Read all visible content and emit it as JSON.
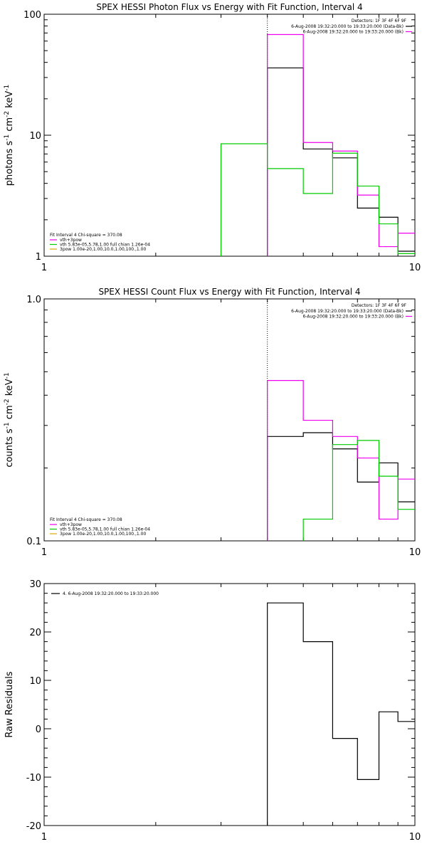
{
  "chart_data": [
    {
      "type": "line",
      "title": "SPEX HESSI Photon Flux vs Energy with Fit Function, Interval 4",
      "ylabel": "photons s^-1 cm^-2 keV^-1",
      "ylabel_parts": [
        "photons s",
        "-1",
        " cm",
        "-2",
        " keV",
        "-1"
      ],
      "xscale": "log",
      "yscale": "log",
      "xlim": [
        1,
        10
      ],
      "ylim": [
        1,
        100
      ],
      "xticks": [
        "1",
        "10"
      ],
      "yticks": [
        "1",
        "10",
        "100"
      ],
      "edges": [
        3.0,
        4.0,
        5.0,
        6.0,
        7.0,
        8.0,
        9.0,
        10.0
      ],
      "vline": 4.0,
      "series": [
        {
          "name": "data",
          "color": "#000000",
          "values": [
            null,
            36,
            7.7,
            6.5,
            2.5,
            2.1,
            1.1
          ]
        },
        {
          "name": "vth+3pow",
          "color": "#ee00ee",
          "values": [
            null,
            68,
            8.7,
            7.4,
            3.2,
            1.2,
            1.55
          ]
        },
        {
          "name": "vth 5.83e-05,5.78,1.00  full chian 1.26e-04",
          "color": "#00cc00",
          "values": [
            8.5,
            5.3,
            3.3,
            7.1,
            3.8,
            1.85,
            1.05
          ]
        }
      ],
      "legend_top_right": {
        "detectors": "Detectors: 1F 3F 4F 6F 9F",
        "lines": [
          {
            "text": "6-Aug-2008 19:32:20.000 to 19:33:20.000 (Data-Bk)",
            "color": "#000000"
          },
          {
            "text": "6-Aug-2008 19:32:20.000 to 19:33:20.000 (Bk)",
            "color": "#ee00ee"
          }
        ]
      },
      "legend_bottom_left": {
        "header": "Fit Interval 4    Chi-square = 370.08",
        "lines": [
          {
            "text": "vth+3pow",
            "color": "#ee00ee"
          },
          {
            "text": "vth 5.83e-05,5.78,1.00  full chian 1.26e-04",
            "color": "#00cc00"
          },
          {
            "text": "3pow 1.00e-20,1.00,10.0,1.00,100.,1.00",
            "color": "#ddaa00"
          }
        ]
      }
    },
    {
      "type": "line",
      "title": "SPEX HESSI Count Flux vs Energy with Fit Function, Interval 4",
      "ylabel": "counts s^-1 cm^-2 keV^-1",
      "ylabel_parts": [
        "counts s",
        "-1",
        " cm",
        "-2",
        " keV",
        "-1"
      ],
      "xscale": "log",
      "yscale": "log",
      "xlim": [
        1,
        10
      ],
      "ylim": [
        0.1,
        1.0
      ],
      "xticks": [
        "1",
        "10"
      ],
      "yticks": [
        "0.1",
        "1.0"
      ],
      "edges": [
        3.0,
        4.0,
        5.0,
        6.0,
        7.0,
        8.0,
        9.0,
        10.0
      ],
      "vline": 4.0,
      "series": [
        {
          "name": "data",
          "color": "#000000",
          "values": [
            null,
            0.27,
            0.28,
            0.24,
            0.175,
            0.21,
            0.145
          ]
        },
        {
          "name": "vth+3pow",
          "color": "#ee00ee",
          "values": [
            null,
            0.46,
            0.315,
            0.27,
            0.22,
            0.123,
            0.18
          ]
        },
        {
          "name": "vth 5.83e-05,5.78,1.00  full chian 1.26e-04",
          "color": "#00cc00",
          "values": [
            null,
            null,
            0.123,
            0.25,
            0.26,
            0.185,
            0.135
          ]
        }
      ],
      "legend_top_right": {
        "detectors": "Detectors: 1F 3F 4F 6F 9F",
        "lines": [
          {
            "text": "6-Aug-2008 19:32:20.000 to 19:33:20.000 (Data-Bk)",
            "color": "#000000"
          },
          {
            "text": "6-Aug-2008 19:32:20.000 to 19:33:20.000 (Bk)",
            "color": "#ee00ee"
          }
        ]
      },
      "legend_bottom_left": {
        "header": "Fit Interval 4    Chi-square = 370.08",
        "lines": [
          {
            "text": "vth+3pow",
            "color": "#ee00ee"
          },
          {
            "text": "vth 5.83e-05,5.78,1.00  full chian 1.26e-04",
            "color": "#00cc00"
          },
          {
            "text": "3pow 1.00e-20,1.00,10.0,1.00,100.,1.00",
            "color": "#ddaa00"
          }
        ]
      }
    },
    {
      "type": "line",
      "title": "",
      "ylabel": "Raw Residuals",
      "xscale": "log",
      "yscale": "linear",
      "xlim": [
        1,
        10
      ],
      "ylim": [
        -20,
        30
      ],
      "xticks": [
        "1",
        "10"
      ],
      "yticks": [
        "-20",
        "-10",
        "0",
        "10",
        "20",
        "30"
      ],
      "edges": [
        4.0,
        5.0,
        6.0,
        7.0,
        8.0,
        9.0,
        10.0
      ],
      "series": [
        {
          "name": "4.  6-Aug-2008 19:32:20.000 to 19:33:20.000",
          "color": "#000000",
          "values": [
            26,
            18,
            -2,
            -10.5,
            3.5,
            1.5
          ]
        }
      ],
      "legend_top_left": {
        "lines": [
          {
            "text": "4.  6-Aug-2008 19:32:20.000 to 19:33:20.000",
            "color": "#000000"
          }
        ]
      }
    }
  ]
}
